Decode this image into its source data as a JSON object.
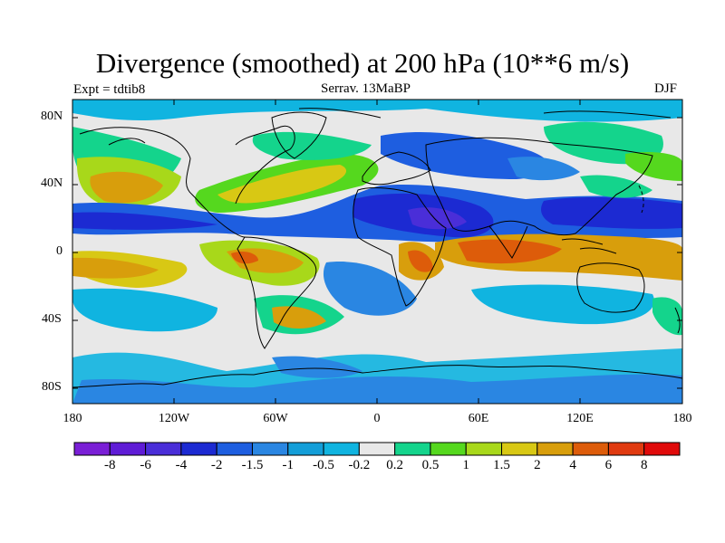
{
  "header": {
    "title": "Divergence (smoothed) at 200 hPa (10**6 m/s)",
    "left": "Expt = tdtib8",
    "center": "Serrav.  13MaBP",
    "right": "DJF"
  },
  "map": {
    "projection": "cylindrical-equidistant",
    "lat_ticks": [
      "80N",
      "40N",
      "0",
      "40S",
      "80S"
    ],
    "lon_ticks": [
      "180",
      "120W",
      "60W",
      "0",
      "60E",
      "120E",
      "180"
    ],
    "coastlines": true,
    "background_color": "#e8e8e8"
  },
  "colorbar": {
    "labels": [
      "-8",
      "-6",
      "-4",
      "-2",
      "-1.5",
      "-1",
      "-0.5",
      "-0.2",
      "0.2",
      "0.5",
      "1",
      "1.5",
      "2",
      "4",
      "6",
      "8"
    ],
    "colors": [
      "#7a1fd6",
      "#5f1cd6",
      "#4a2ed8",
      "#1c2ad2",
      "#1e5ee0",
      "#2a86e2",
      "#139ed8",
      "#10b4e0",
      "#e8e8e8",
      "#14d48c",
      "#55d81e",
      "#a8d81a",
      "#d8c814",
      "#d89e0c",
      "#dd5c0a",
      "#e03a10",
      "#e00a0a"
    ]
  }
}
